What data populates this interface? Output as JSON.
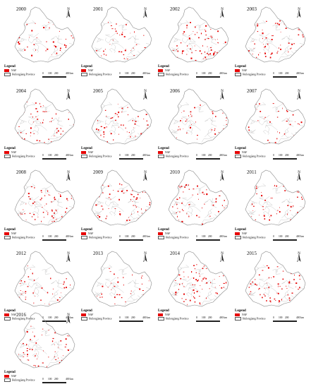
{
  "panels": [
    {
      "year": "2000"
    },
    {
      "year": "2001"
    },
    {
      "year": "2002"
    },
    {
      "year": "2003"
    },
    {
      "year": "2004"
    },
    {
      "year": "2005"
    },
    {
      "year": "2006"
    },
    {
      "year": "2007"
    },
    {
      "year": "2008"
    },
    {
      "year": "2009"
    },
    {
      "year": "2010"
    },
    {
      "year": "2011"
    },
    {
      "year": "2012"
    },
    {
      "year": "2013"
    },
    {
      "year": "2014"
    },
    {
      "year": "2015"
    },
    {
      "year": "2016"
    }
  ],
  "legend": {
    "title": "Legend",
    "naf_label": "NAF",
    "province_label": "Heilongjiang Province"
  },
  "scale": {
    "ticks": [
      "0",
      "100",
      "200",
      "400 km"
    ]
  },
  "north_label": "N",
  "colors": {
    "naf": "#e60000",
    "boundary": "#8a8a8a"
  }
}
